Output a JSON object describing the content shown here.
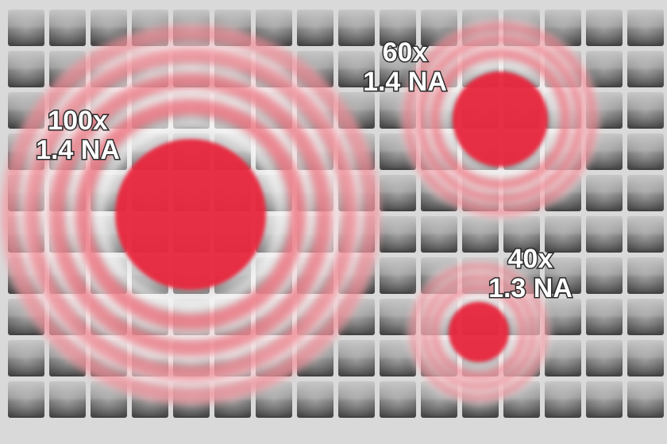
{
  "spots": [
    {
      "id": "spot-100x",
      "magnification": "100x",
      "aperture": "1.4 NA"
    },
    {
      "id": "spot-60x",
      "magnification": "60x",
      "aperture": "1.4 NA"
    },
    {
      "id": "spot-40x",
      "magnification": "40x",
      "aperture": "1.3 NA"
    }
  ],
  "colors": {
    "spot": "#e8283c",
    "ring": "#f07a86",
    "pixel_light": "#bdbdbd",
    "pixel_dark": "#4a4a4a",
    "grid_line": "#dcdcdc"
  }
}
